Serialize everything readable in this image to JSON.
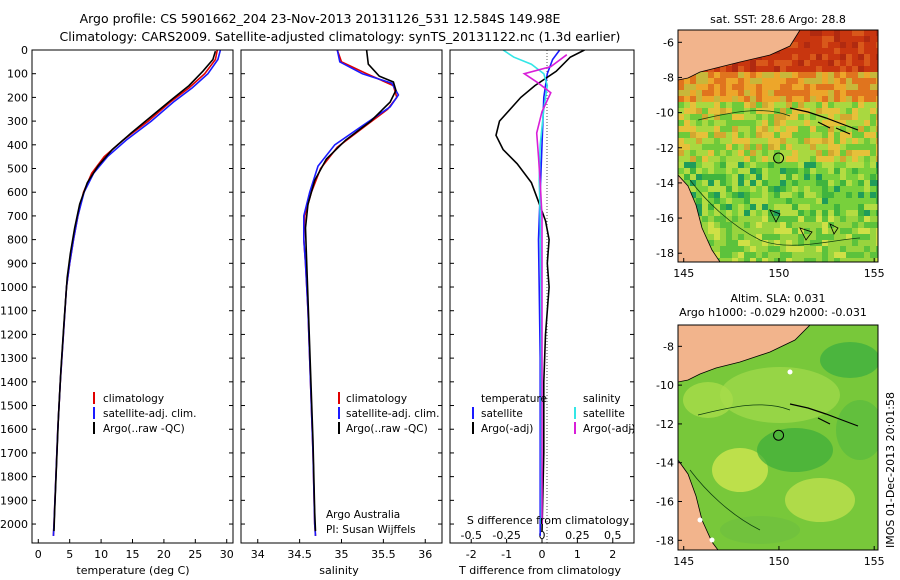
{
  "header": {
    "title_line1": "Argo profile: CS 5901662_204 23-Nov-2013 20131126_531 12.584S 149.98E",
    "title_line2": "Climatology: CARS2009. Satellite-adjusted climatology: synTS_20131122.nc (1.3d earlier)"
  },
  "credits": {
    "org": "Argo Australia",
    "pi": "PI: Susan Wijffels"
  },
  "side_label": "IMOS 01-Dec-2013 20:01:58",
  "colors": {
    "clim": "#e00000",
    "sat": "#1a1aff",
    "argo": "#000000",
    "sal_sat": "#33e6e6",
    "sal_argo": "#d81ed8"
  },
  "chart_data": [
    {
      "type": "line",
      "name": "temperature",
      "xlabel": "temperature (deg C)",
      "ylabel": "",
      "xlim": [
        -1,
        31
      ],
      "ylim": [
        2080,
        0
      ],
      "xticks": [
        "0",
        "5",
        "10",
        "15",
        "20",
        "25",
        "30"
      ],
      "xtick_values": [
        0,
        5,
        10,
        15,
        20,
        25,
        30
      ],
      "yticks": [
        "0",
        "100",
        "200",
        "300",
        "400",
        "500",
        "600",
        "700",
        "800",
        "900",
        "1000",
        "1100",
        "1200",
        "1300",
        "1400",
        "1500",
        "1600",
        "1700",
        "1800",
        "1900",
        "2000"
      ],
      "ytick_values": [
        0,
        100,
        200,
        300,
        400,
        500,
        600,
        700,
        800,
        900,
        1000,
        1100,
        1200,
        1300,
        1400,
        1500,
        1600,
        1700,
        1800,
        1900,
        2000
      ],
      "legend": [
        "climatology",
        "satellite-adj. clim.",
        "Argo(..raw -QC)"
      ],
      "series": [
        {
          "name": "climatology",
          "color": "#e00000",
          "points": [
            [
              28.5,
              0
            ],
            [
              28.2,
              40
            ],
            [
              26.5,
              100
            ],
            [
              24,
              160
            ],
            [
              21,
              220
            ],
            [
              17.5,
              300
            ],
            [
              13.5,
              380
            ],
            [
              10.5,
              450
            ],
            [
              8.5,
              520
            ],
            [
              7.2,
              600
            ],
            [
              6.3,
              700
            ],
            [
              5.6,
              800
            ],
            [
              5.0,
              900
            ],
            [
              4.5,
              1000
            ],
            [
              4.0,
              1200
            ],
            [
              3.5,
              1400
            ],
            [
              3.1,
              1600
            ],
            [
              2.8,
              1800
            ],
            [
              2.5,
              2000
            ],
            [
              2.4,
              2050
            ]
          ]
        },
        {
          "name": "satellite-adj. clim.",
          "color": "#1a1aff",
          "points": [
            [
              29,
              0
            ],
            [
              28.6,
              40
            ],
            [
              27,
              100
            ],
            [
              24.5,
              160
            ],
            [
              21.5,
              220
            ],
            [
              18,
              300
            ],
            [
              14,
              380
            ],
            [
              11,
              450
            ],
            [
              8.8,
              520
            ],
            [
              7.3,
              600
            ],
            [
              6.3,
              700
            ],
            [
              5.6,
              800
            ],
            [
              5.0,
              900
            ],
            [
              4.5,
              1000
            ],
            [
              4.0,
              1200
            ],
            [
              3.5,
              1400
            ],
            [
              3.1,
              1600
            ],
            [
              2.8,
              1800
            ],
            [
              2.5,
              2000
            ],
            [
              2.4,
              2050
            ]
          ]
        },
        {
          "name": "Argo(..raw -QC)",
          "color": "#000000",
          "points": [
            [
              28.2,
              5
            ],
            [
              27.8,
              40
            ],
            [
              26.2,
              90
            ],
            [
              24,
              150
            ],
            [
              21.2,
              210
            ],
            [
              18,
              280
            ],
            [
              14.8,
              350
            ],
            [
              11.8,
              420
            ],
            [
              9.5,
              490
            ],
            [
              7.8,
              560
            ],
            [
              6.6,
              650
            ],
            [
              5.8,
              750
            ],
            [
              5.1,
              860
            ],
            [
              4.6,
              960
            ],
            [
              4.1,
              1150
            ],
            [
              3.6,
              1350
            ],
            [
              3.2,
              1550
            ],
            [
              2.9,
              1750
            ],
            [
              2.6,
              1950
            ],
            [
              2.5,
              2030
            ]
          ]
        }
      ]
    },
    {
      "type": "line",
      "name": "salinity",
      "xlabel": "salinity",
      "xlim": [
        33.8,
        36.2
      ],
      "ylim": [
        2080,
        0
      ],
      "xticks": [
        "34",
        "34.5",
        "35",
        "35.5",
        "36"
      ],
      "xtick_values": [
        34,
        34.5,
        35,
        35.5,
        36
      ],
      "legend": [
        "climatology",
        "satellite-adj. clim.",
        "Argo(..raw -QC)"
      ],
      "series": [
        {
          "name": "climatology",
          "color": "#e00000",
          "points": [
            [
              34.95,
              0
            ],
            [
              35.0,
              50
            ],
            [
              35.3,
              100
            ],
            [
              35.62,
              150
            ],
            [
              35.66,
              200
            ],
            [
              35.55,
              250
            ],
            [
              35.25,
              330
            ],
            [
              34.95,
              410
            ],
            [
              34.75,
              500
            ],
            [
              34.64,
              600
            ],
            [
              34.56,
              700
            ],
            [
              34.55,
              800
            ],
            [
              34.57,
              900
            ],
            [
              34.6,
              1100
            ],
            [
              34.63,
              1400
            ],
            [
              34.66,
              1700
            ],
            [
              34.68,
              2000
            ],
            [
              34.69,
              2050
            ]
          ]
        },
        {
          "name": "satellite-adj. clim.",
          "color": "#1a1aff",
          "points": [
            [
              34.95,
              0
            ],
            [
              34.98,
              50
            ],
            [
              35.25,
              100
            ],
            [
              35.6,
              140
            ],
            [
              35.68,
              190
            ],
            [
              35.58,
              240
            ],
            [
              35.25,
              320
            ],
            [
              34.92,
              400
            ],
            [
              34.72,
              490
            ],
            [
              34.62,
              600
            ],
            [
              34.55,
              700
            ],
            [
              34.55,
              800
            ],
            [
              34.57,
              900
            ],
            [
              34.6,
              1100
            ],
            [
              34.63,
              1400
            ],
            [
              34.66,
              1700
            ],
            [
              34.68,
              2000
            ],
            [
              34.69,
              2050
            ]
          ]
        },
        {
          "name": "Argo(..raw -QC)",
          "color": "#000000",
          "points": [
            [
              35.3,
              0
            ],
            [
              35.32,
              60
            ],
            [
              35.45,
              110
            ],
            [
              35.62,
              135
            ],
            [
              35.65,
              170
            ],
            [
              35.58,
              220
            ],
            [
              35.35,
              300
            ],
            [
              35.05,
              380
            ],
            [
              34.82,
              460
            ],
            [
              34.68,
              550
            ],
            [
              34.6,
              650
            ],
            [
              34.57,
              750
            ],
            [
              34.58,
              850
            ],
            [
              34.6,
              1050
            ],
            [
              34.63,
              1350
            ],
            [
              34.66,
              1650
            ],
            [
              34.68,
              1950
            ],
            [
              34.69,
              2030
            ]
          ]
        }
      ]
    },
    {
      "type": "line",
      "name": "difference from climatology",
      "xlabel": "T difference from climatology",
      "xlabel_top": "S difference from climatology",
      "xlim": [
        -2.6,
        2.6
      ],
      "ylim": [
        2080,
        0
      ],
      "xticks": [
        "-2",
        "-1",
        "0",
        "1",
        "2"
      ],
      "xtick_values": [
        -2,
        -1,
        0,
        1,
        2
      ],
      "s_ticks": [
        "-0.5",
        "-0.25",
        "0",
        "0.25",
        "0.5"
      ],
      "s_tick_values": [
        -2,
        -1,
        0,
        1,
        2
      ],
      "legend_temperature_title": "temperature",
      "legend_salinity_title": "salinity",
      "legend": [
        "satellite",
        "Argo(-adj)",
        "satellite",
        "Argo(-adj)"
      ],
      "series": [
        {
          "name": "T satellite",
          "color": "#1a1aff",
          "points": [
            [
              0.5,
              0
            ],
            [
              0.3,
              40
            ],
            [
              0.15,
              100
            ],
            [
              0.05,
              200
            ],
            [
              0,
              400
            ],
            [
              -0.05,
              600
            ],
            [
              -0.1,
              800
            ],
            [
              -0.08,
              1000
            ],
            [
              -0.05,
              1300
            ],
            [
              -0.05,
              1600
            ],
            [
              -0.05,
              2000
            ],
            [
              -0.05,
              2050
            ]
          ]
        },
        {
          "name": "T Argo(-adj)",
          "color": "#000000",
          "points": [
            [
              1.2,
              0
            ],
            [
              0.8,
              30
            ],
            [
              0.4,
              90
            ],
            [
              -0.2,
              150
            ],
            [
              -0.6,
              200
            ],
            [
              -1.2,
              300
            ],
            [
              -1.3,
              360
            ],
            [
              -1.1,
              420
            ],
            [
              -0.7,
              480
            ],
            [
              -0.3,
              560
            ],
            [
              -0.1,
              640
            ],
            [
              0.1,
              720
            ],
            [
              0.2,
              800
            ],
            [
              0.15,
              900
            ],
            [
              0.2,
              1000
            ],
            [
              0.1,
              1200
            ],
            [
              0.05,
              1400
            ],
            [
              0.05,
              1700
            ],
            [
              0.0,
              2030
            ]
          ]
        },
        {
          "name": "S satellite",
          "color": "#33e6e6",
          "points": [
            [
              -1.1,
              0
            ],
            [
              -0.8,
              30
            ],
            [
              -0.3,
              60
            ],
            [
              0.05,
              100
            ],
            [
              0.15,
              150
            ],
            [
              0.05,
              250
            ],
            [
              -0.05,
              400
            ],
            [
              -0.08,
              550
            ],
            [
              -0.05,
              700
            ],
            [
              -0.03,
              1000
            ],
            [
              -0.02,
              1500
            ],
            [
              -0.02,
              2000
            ]
          ]
        },
        {
          "name": "S Argo(-adj)",
          "color": "#d81ed8",
          "points": [
            [
              0.7,
              20
            ],
            [
              0.25,
              70
            ],
            [
              -0.5,
              100
            ],
            [
              -0.1,
              140
            ],
            [
              0.25,
              180
            ],
            [
              0.0,
              260
            ],
            [
              -0.15,
              350
            ],
            [
              -0.1,
              450
            ],
            [
              -0.05,
              560
            ],
            [
              0.0,
              700
            ],
            [
              0.0,
              1000
            ],
            [
              0.0,
              1500
            ],
            [
              0.0,
              2000
            ]
          ]
        }
      ]
    },
    {
      "type": "heatmap",
      "name": "sst-map",
      "title": "sat. SST: 28.6  Argo: 28.8",
      "xlim": [
        144.7,
        155.2
      ],
      "ylim": [
        -18.5,
        -5.3
      ],
      "xticks": [
        "145",
        "150",
        "155"
      ],
      "xtick_values": [
        145,
        150,
        155
      ],
      "yticks": [
        "-6",
        "-8",
        "-10",
        "-12",
        "-14",
        "-16",
        "-18"
      ],
      "ytick_values": [
        -6,
        -8,
        -10,
        -12,
        -14,
        -16,
        -18
      ],
      "marker": [
        149.98,
        -12.584
      ]
    },
    {
      "type": "heatmap",
      "name": "sla-map",
      "title_line1": "Altim. SLA: 0.031",
      "title_line2": "Argo h1000: -0.029  h2000: -0.031",
      "xlim": [
        144.7,
        155.2
      ],
      "ylim": [
        -18.5,
        -6.9
      ],
      "xticks": [
        "145",
        "150",
        "155"
      ],
      "xtick_values": [
        145,
        150,
        155
      ],
      "yticks": [
        "-8",
        "-10",
        "-12",
        "-14",
        "-16",
        "-18"
      ],
      "ytick_values": [
        -8,
        -10,
        -12,
        -14,
        -16,
        -18
      ],
      "marker": [
        149.98,
        -12.584
      ]
    }
  ]
}
